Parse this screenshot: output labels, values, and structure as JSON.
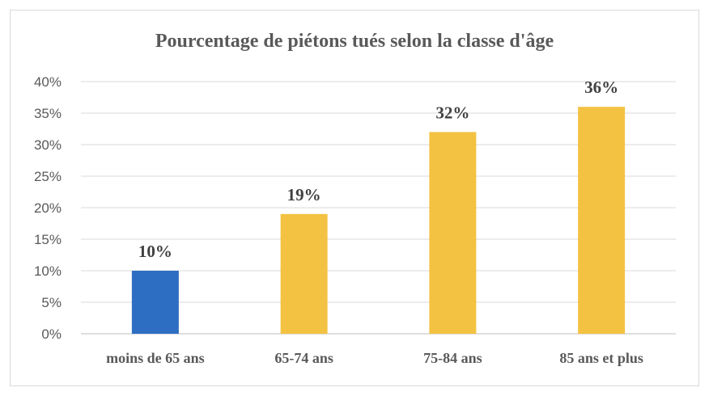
{
  "chart_data": {
    "type": "bar",
    "title": "Pourcentage de piétons tués selon la classe d'âge",
    "categories": [
      "moins de 65 ans",
      "65-74 ans",
      "75-84 ans",
      "85 ans et plus"
    ],
    "values": [
      10,
      19,
      32,
      36
    ],
    "data_labels": [
      "10%",
      "19%",
      "32%",
      "36%"
    ],
    "bar_colors": [
      "#2e6ec2",
      "#f4c242",
      "#f4c242",
      "#f4c242"
    ],
    "ylim": [
      0,
      40
    ],
    "yticks": [
      0,
      5,
      10,
      15,
      20,
      25,
      30,
      35,
      40
    ],
    "ytick_labels": [
      "0%",
      "5%",
      "10%",
      "15%",
      "20%",
      "25%",
      "30%",
      "35%",
      "40%"
    ],
    "xlabel": "",
    "ylabel": "",
    "grid": true,
    "legend": "none"
  }
}
